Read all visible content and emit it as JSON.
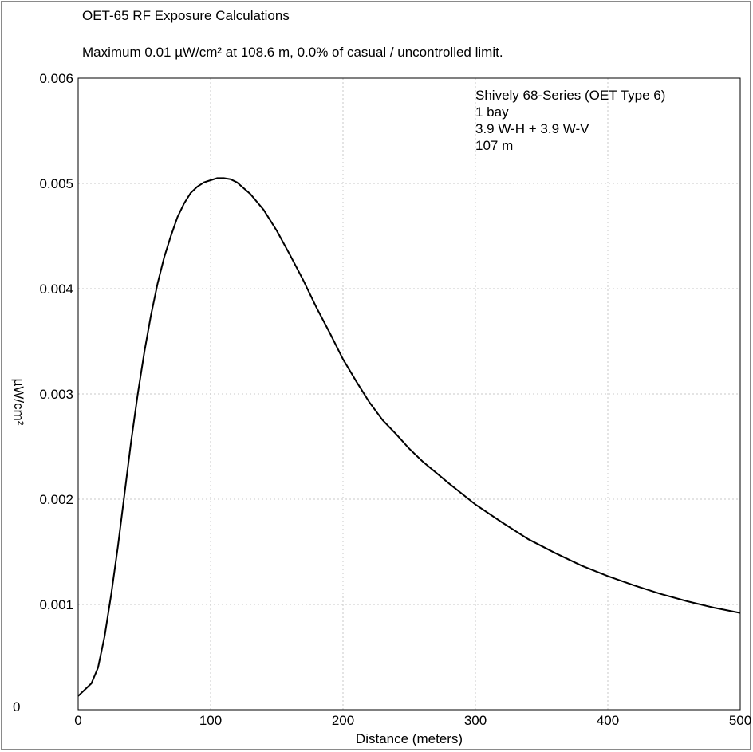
{
  "chart_data": {
    "type": "line",
    "title": "OET-65 RF Exposure Calculations",
    "subtitle": "Maximum 0.01 µW/cm² at 108.6 m, 0.0% of casual / uncontrolled limit.",
    "xlabel": "Distance (meters)",
    "ylabel": "µW/cm²",
    "xlim": [
      0,
      500
    ],
    "ylim": [
      0,
      0.006
    ],
    "x_ticks": [
      "0",
      "100",
      "200",
      "300",
      "400",
      "500"
    ],
    "y_ticks": [
      "0",
      "0.001",
      "0.002",
      "0.003",
      "0.004",
      "0.005",
      "0.006"
    ],
    "grid": true,
    "annotation": {
      "lines": [
        "Shively 68-Series (OET Type 6)",
        "1 bay",
        "3.9 W-H + 3.9 W-V",
        "107 m"
      ],
      "position": "top-right"
    },
    "series": [
      {
        "x": [
          0,
          10,
          15,
          20,
          25,
          30,
          35,
          40,
          45,
          50,
          55,
          60,
          65,
          70,
          75,
          80,
          85,
          90,
          95,
          100,
          105,
          110,
          115,
          120,
          130,
          140,
          150,
          160,
          170,
          180,
          190,
          200,
          210,
          220,
          230,
          240,
          250,
          260,
          280,
          300,
          320,
          340,
          360,
          380,
          400,
          420,
          440,
          460,
          480,
          500
        ],
        "y": [
          0.00013,
          0.00025,
          0.0004,
          0.0007,
          0.0011,
          0.00155,
          0.00205,
          0.00255,
          0.003,
          0.0034,
          0.00375,
          0.00405,
          0.0043,
          0.0045,
          0.00468,
          0.00481,
          0.00491,
          0.00497,
          0.00501,
          0.00503,
          0.00505,
          0.00505,
          0.00504,
          0.00501,
          0.0049,
          0.00475,
          0.00455,
          0.00432,
          0.00408,
          0.00382,
          0.00358,
          0.00333,
          0.00312,
          0.00292,
          0.00275,
          0.00262,
          0.00248,
          0.00236,
          0.00215,
          0.00195,
          0.00178,
          0.00162,
          0.00149,
          0.00137,
          0.00127,
          0.00118,
          0.0011,
          0.00103,
          0.00097,
          0.00092
        ]
      }
    ]
  }
}
